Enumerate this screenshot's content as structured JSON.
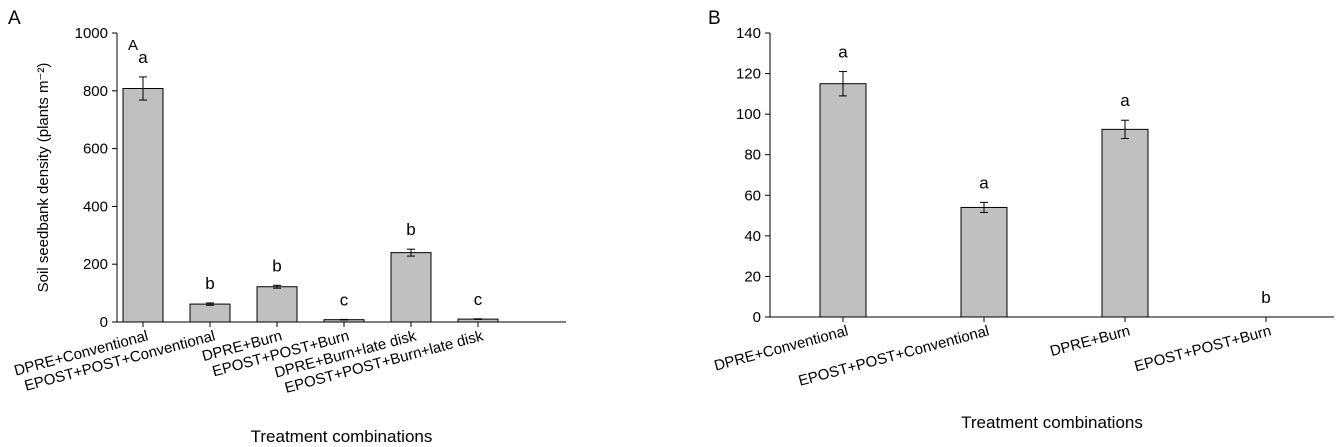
{
  "chart_data": [
    {
      "type": "bar",
      "panel_label": "A",
      "inner_label": "A",
      "categories": [
        "DPRE+Conventional",
        "EPOST+POST+Conventional",
        "DPRE+Burn",
        "EPOST+POST+Burn",
        "DPRE+Burn+late disk",
        "EPOST+POST+Burn+late disk"
      ],
      "values": [
        808,
        62,
        122,
        8,
        240,
        10
      ],
      "errors": [
        40,
        4,
        5,
        1,
        12,
        1
      ],
      "letters": [
        "a",
        "b",
        "b",
        "c",
        "b",
        "c"
      ],
      "xlabel": "Treatment combinations",
      "ylabel": "Soil seedbank density (plants m⁻²)",
      "ylim": [
        0,
        1000
      ],
      "yticks": [
        0,
        200,
        400,
        600,
        800,
        1000
      ],
      "grid": false,
      "bar_color": "#c0c0c0"
    },
    {
      "type": "bar",
      "panel_label": "B",
      "categories": [
        "DPRE+Conventional",
        "EPOST+POST+Conventional",
        "DPRE+Burn",
        "EPOST+POST+Burn"
      ],
      "values": [
        115,
        54,
        92.5,
        0
      ],
      "errors": [
        6,
        2.5,
        4.5,
        0
      ],
      "letters": [
        "a",
        "a",
        "a",
        "b"
      ],
      "xlabel": "Treatment combinations",
      "ylabel": "",
      "ylim": [
        0,
        140
      ],
      "yticks": [
        0,
        20,
        40,
        60,
        80,
        100,
        120,
        140
      ],
      "grid": false,
      "bar_color": "#c0c0c0"
    }
  ]
}
